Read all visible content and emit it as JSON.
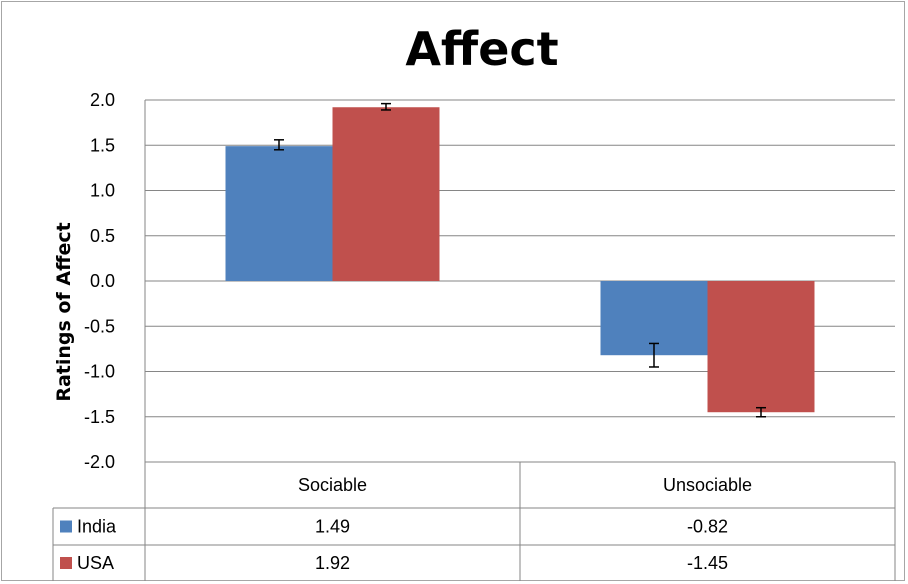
{
  "chart_data": {
    "type": "bar",
    "title": "Affect",
    "xlabel": "",
    "ylabel": "Ratings of Affect",
    "ylim": [
      -2.0,
      2.0
    ],
    "yticks": [
      "2.0",
      "1.5",
      "1.0",
      "0.5",
      "0.0",
      "-0.5",
      "-1.0",
      "-1.5",
      "-2.0"
    ],
    "categories": [
      "Sociable",
      "Unsociable"
    ],
    "series": [
      {
        "name": "India",
        "color": "#4f81bd",
        "values": [
          1.49,
          -0.82
        ],
        "labels": [
          "1.49",
          "-0.82"
        ],
        "error_low": [
          1.45,
          -0.95
        ],
        "error_high": [
          1.56,
          -0.69
        ]
      },
      {
        "name": "USA",
        "color": "#c0504d",
        "values": [
          1.92,
          -1.45
        ],
        "labels": [
          "1.92",
          "-1.45"
        ],
        "error_low": [
          1.89,
          -1.5
        ],
        "error_high": [
          1.96,
          -1.4
        ]
      }
    ],
    "grid": true,
    "legend": "data-table"
  }
}
